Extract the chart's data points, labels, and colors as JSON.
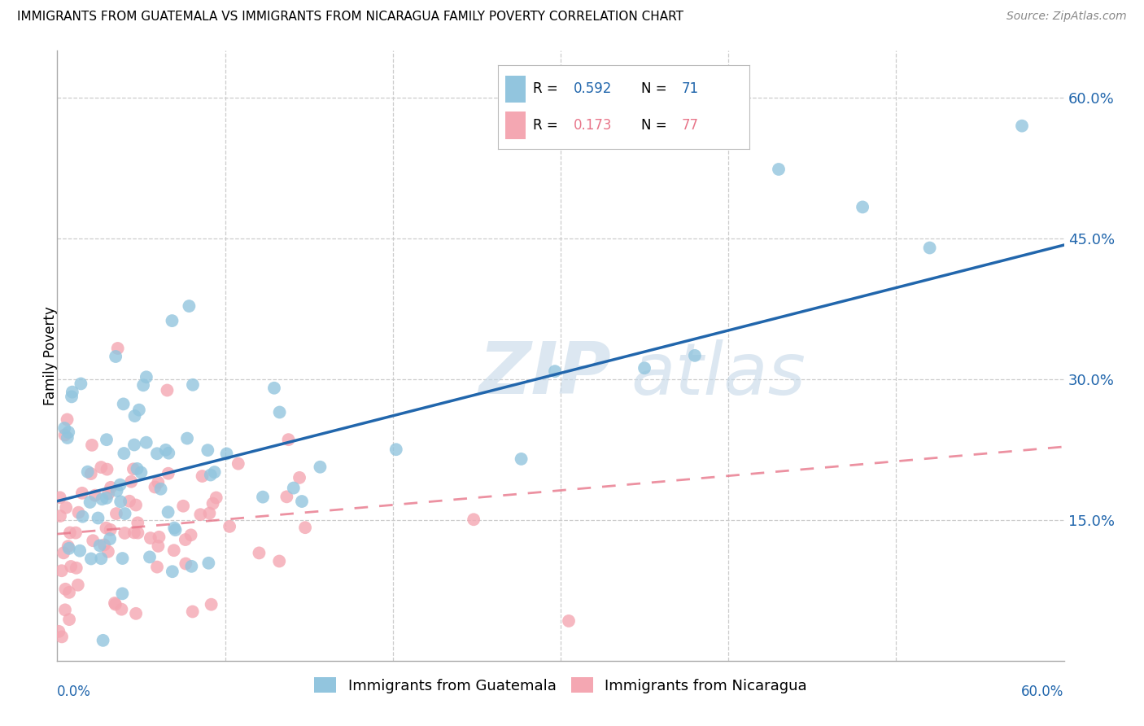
{
  "title": "IMMIGRANTS FROM GUATEMALA VS IMMIGRANTS FROM NICARAGUA FAMILY POVERTY CORRELATION CHART",
  "source": "Source: ZipAtlas.com",
  "ylabel": "Family Poverty",
  "ytick_labels": [
    "15.0%",
    "30.0%",
    "45.0%",
    "60.0%"
  ],
  "ytick_values": [
    0.15,
    0.3,
    0.45,
    0.6
  ],
  "xlim": [
    0.0,
    0.6
  ],
  "ylim": [
    0.0,
    0.65
  ],
  "color_blue": "#92c5de",
  "color_pink": "#f4a7b2",
  "color_blue_dark": "#2166ac",
  "color_pink_dark": "#e8768a",
  "watermark_color": "#c5d8e8",
  "grid_color": "#cccccc",
  "spine_color": "#aaaaaa",
  "guat_line_intercept": 0.17,
  "guat_line_slope": 0.455,
  "nica_line_intercept": 0.135,
  "nica_line_slope": 0.155,
  "legend_r1": "0.592",
  "legend_n1": "71",
  "legend_r2": "0.173",
  "legend_n2": "77"
}
